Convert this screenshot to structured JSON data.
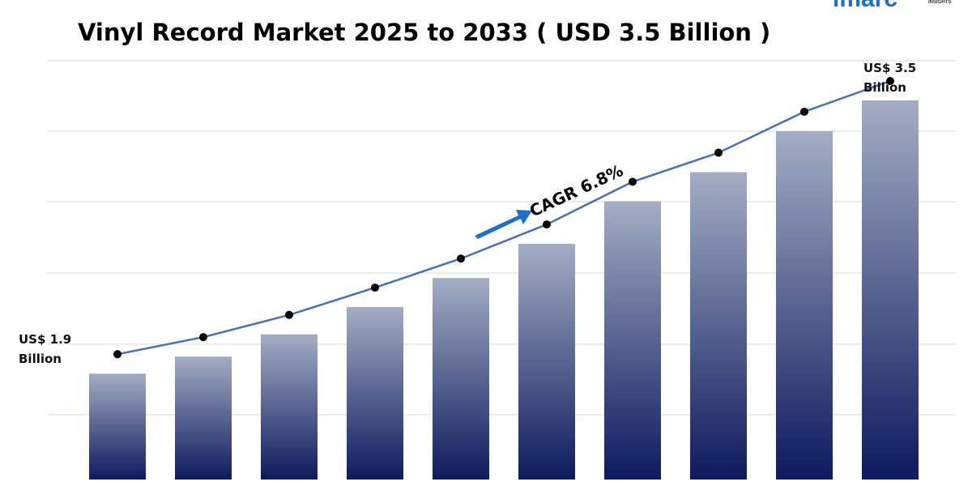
{
  "brand": {
    "name": "imarc",
    "tagline": "INSIGHTS"
  },
  "chart_data": {
    "type": "bar",
    "title": "Vinyl Record Market 2025 to 2033 ( USD 3.5 Billion )",
    "values": [
      1.9,
      2.0,
      2.13,
      2.29,
      2.46,
      2.66,
      2.91,
      3.08,
      3.32,
      3.5
    ],
    "value_labels": [
      "US$ 1.9 Billion",
      null,
      null,
      null,
      null,
      null,
      null,
      null,
      null,
      "US$ 3.5 Billion"
    ],
    "annotation": "CAGR 6.8%",
    "ylim": [
      1.28,
      3.5
    ],
    "color": "#0d1b5e",
    "line_color": "#4a6fb5"
  }
}
